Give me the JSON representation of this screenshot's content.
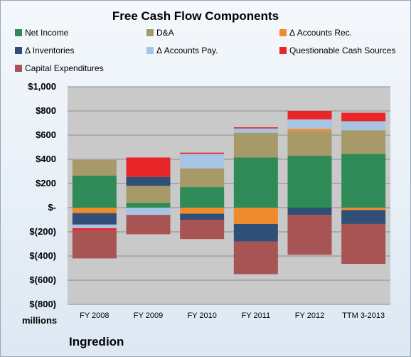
{
  "chart_data": {
    "type": "bar",
    "stacked": true,
    "title": "Free Cash Flow Components",
    "categories": [
      "FY 2008",
      "FY 2009",
      "FY 2010",
      "FY 2011",
      "FY 2012",
      "TTM 3-2013"
    ],
    "ylim": [
      -800,
      1000
    ],
    "yticks": [
      "$1,000",
      "$800",
      "$600",
      "$400",
      "$200",
      "$-",
      "$(200)",
      "$(400)",
      "$(600)",
      "$(800)"
    ],
    "unit_label": "millions",
    "grid": true,
    "legend_position": "top",
    "series": [
      {
        "name": "Net Income",
        "color": "#2e8b57",
        "values": [
          265,
          40,
          170,
          415,
          430,
          445
        ]
      },
      {
        "name": "D&A",
        "color": "#a89a68",
        "values": [
          130,
          140,
          155,
          205,
          200,
          195
        ]
      },
      {
        "name": "Δ Accounts Rec.",
        "color": "#ef8b2c",
        "values": [
          -45,
          0,
          -50,
          -135,
          20,
          -20
        ]
      },
      {
        "name": "Δ Inventories",
        "color": "#2f4f77",
        "values": [
          -95,
          75,
          -50,
          -145,
          -60,
          -115
        ]
      },
      {
        "name": "Δ Accounts Pay.",
        "color": "#a8c4e4",
        "values": [
          -30,
          -60,
          120,
          35,
          80,
          75
        ]
      },
      {
        "name": "Questionable Cash Sources",
        "color": "#e8262a",
        "values": [
          -20,
          160,
          10,
          10,
          70,
          70
        ]
      },
      {
        "name": "Capital Expenditures",
        "color": "#a85454",
        "values": [
          -230,
          -160,
          -160,
          -270,
          -330,
          -330
        ]
      }
    ]
  },
  "company": "Ingredion"
}
